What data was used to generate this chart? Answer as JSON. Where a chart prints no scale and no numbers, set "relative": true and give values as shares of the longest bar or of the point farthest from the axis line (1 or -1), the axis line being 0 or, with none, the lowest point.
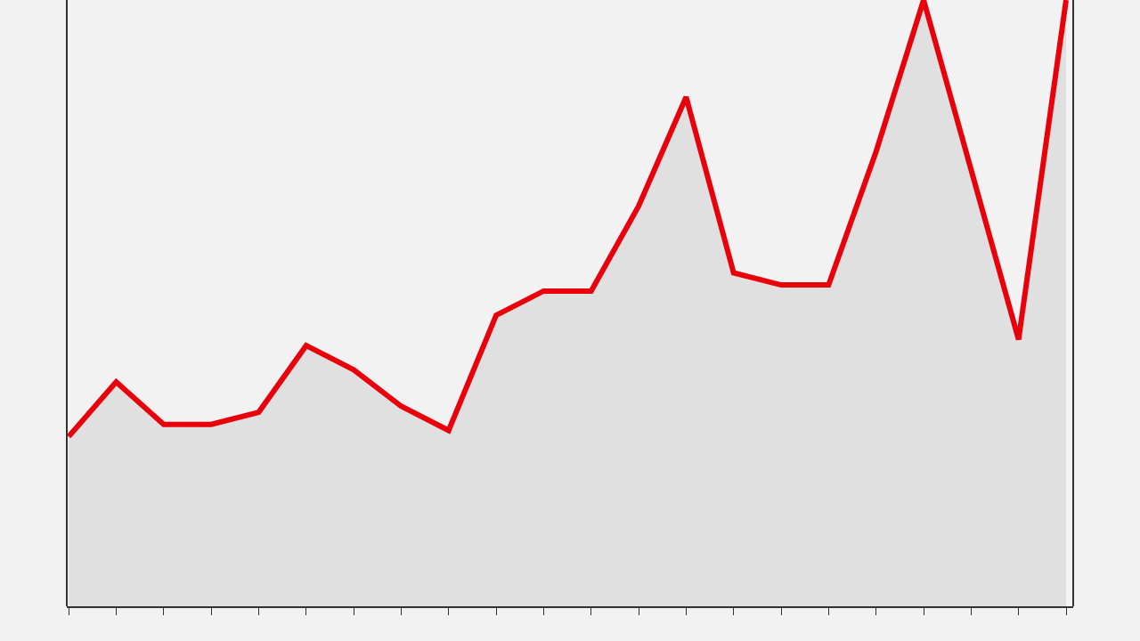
{
  "chart_data": {
    "type": "area",
    "relative": true,
    "categories": [
      null,
      null,
      null,
      null,
      null,
      null,
      null,
      null,
      null,
      null,
      null,
      null,
      null,
      null,
      null,
      null,
      null,
      null,
      null,
      null,
      null,
      null
    ],
    "series": [
      {
        "color": "#e8000b",
        "values": [
          0.28,
          0.37,
          0.3,
          0.3,
          0.32,
          0.43,
          0.39,
          0.33,
          0.29,
          0.48,
          0.52,
          0.52,
          0.66,
          0.84,
          0.55,
          0.53,
          0.53,
          0.75,
          1.0,
          0.72,
          0.44,
          1.0
        ]
      }
    ],
    "grid": false
  }
}
